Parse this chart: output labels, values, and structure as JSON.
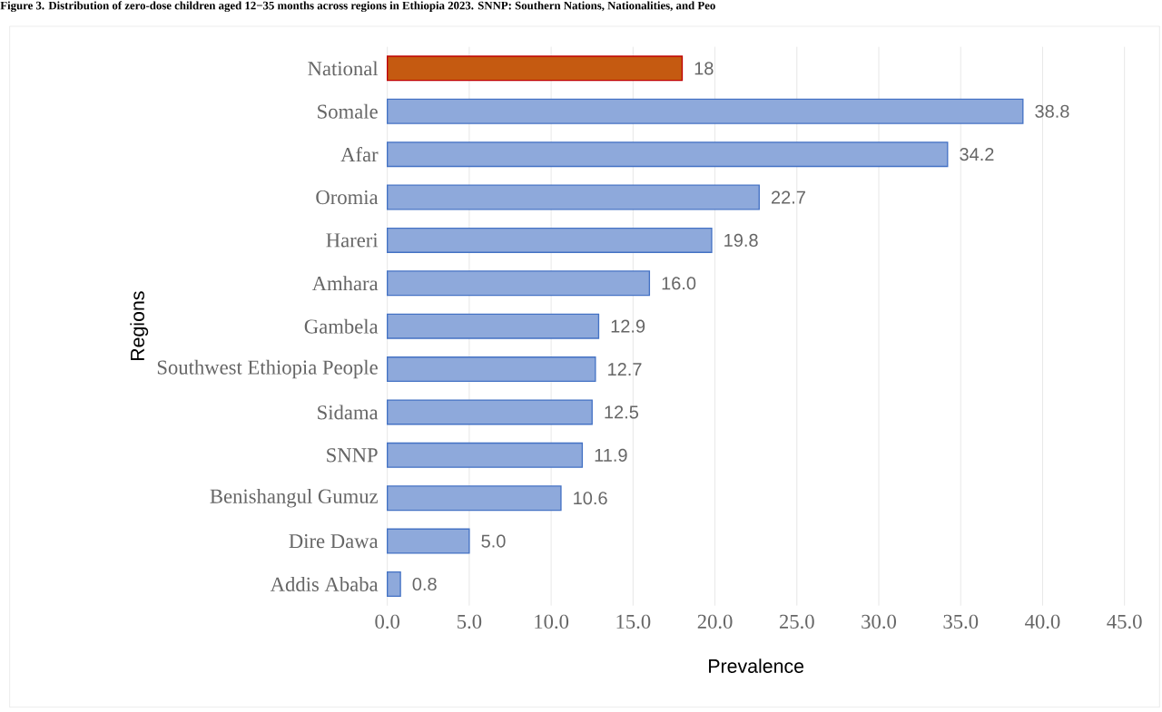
{
  "chart_data": {
    "type": "bar",
    "orientation": "horizontal",
    "title": "Figure 3. Distribution of zero-dose children aged 12−35 months across regions in Ethiopia 2023. SNNP: Southern Nations, Nationalities, and Peo",
    "xlabel": "Prevalence",
    "ylabel": "Regions",
    "categories": [
      "National",
      "Somale",
      "Afar",
      "Oromia",
      "Hareri",
      "Amhara",
      "Gambela",
      "Southwest Ethiopia People",
      "Sidama",
      "SNNP",
      "Benishangul Gumuz",
      "Dire Dawa",
      "Addis Ababa"
    ],
    "values": [
      18,
      38.8,
      34.2,
      22.7,
      19.8,
      16.0,
      12.9,
      12.7,
      12.5,
      11.9,
      10.6,
      5.0,
      0.8
    ],
    "value_labels": [
      "18",
      "38.8",
      "34.2",
      "22.7",
      "19.8",
      "16.0",
      "12.9",
      "12.7",
      "12.5",
      "11.9",
      "10.6",
      "5.0",
      "0.8"
    ],
    "colors": [
      "#c55a11",
      "#8ea9db",
      "#8ea9db",
      "#8ea9db",
      "#8ea9db",
      "#8ea9db",
      "#8ea9db",
      "#8ea9db",
      "#8ea9db",
      "#8ea9db",
      "#8ea9db",
      "#8ea9db",
      "#8ea9db"
    ],
    "xlim": [
      0,
      45
    ],
    "xticks": [
      {
        "value": 0,
        "label": "0.0"
      },
      {
        "value": 5,
        "label": "5.0"
      },
      {
        "value": 10,
        "label": "10.0"
      },
      {
        "value": 15,
        "label": "15.0"
      },
      {
        "value": 20,
        "label": "20.0"
      },
      {
        "value": 25,
        "label": "25.0"
      },
      {
        "value": 30,
        "label": "30.0"
      },
      {
        "value": 35,
        "label": "35.0"
      },
      {
        "value": 40,
        "label": "40.0"
      },
      {
        "value": 45,
        "label": "45.0"
      }
    ],
    "grid": "x"
  }
}
